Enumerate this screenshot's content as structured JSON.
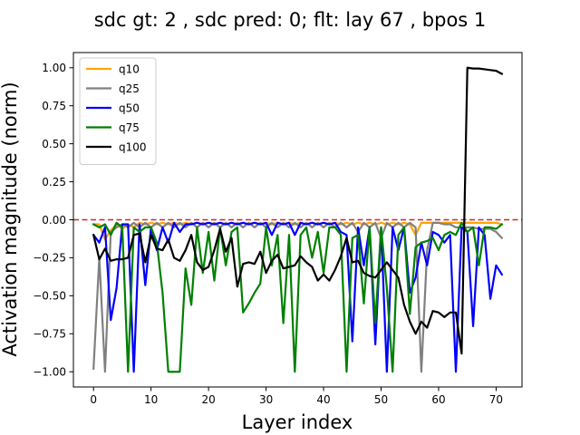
{
  "chart_data": {
    "type": "line",
    "title": "sdc gt: 2 , sdc pred: 0; flt: lay 67 , bpos 1",
    "xlabel": "Layer index",
    "ylabel": "Activation magnitude (norm)",
    "xlim": [
      -3.5,
      74.5
    ],
    "ylim": [
      -1.1,
      1.1
    ],
    "xticks": [
      0,
      10,
      20,
      30,
      40,
      50,
      60,
      70
    ],
    "yticks": [
      -1.0,
      -0.75,
      -0.5,
      -0.25,
      0.0,
      0.25,
      0.5,
      0.75,
      1.0
    ],
    "ytick_labels": [
      "−1.00",
      "−0.75",
      "−0.50",
      "−0.25",
      "0.00",
      "0.25",
      "0.50",
      "0.75",
      "1.00"
    ],
    "grid": false,
    "legend_position": "top-left",
    "reference_line": {
      "y": 0.0,
      "style": "dashed",
      "color": "#d62728"
    },
    "series": [
      {
        "name": "q10",
        "color": "#ffa500",
        "values": [
          -0.03,
          -0.03,
          -0.13,
          -0.07,
          -0.03,
          -0.06,
          -0.03,
          -0.05,
          -0.02,
          -0.03,
          -0.02,
          -0.03,
          -0.02,
          -0.03,
          -0.02,
          -0.03,
          -0.02,
          -0.03,
          -0.02,
          -0.03,
          -0.02,
          -0.03,
          -0.02,
          -0.03,
          -0.02,
          -0.03,
          -0.02,
          -0.03,
          -0.02,
          -0.03,
          -0.02,
          -0.03,
          -0.02,
          -0.03,
          -0.02,
          -0.03,
          -0.02,
          -0.03,
          -0.02,
          -0.03,
          -0.02,
          -0.03,
          -0.02,
          -0.03,
          -0.02,
          -0.03,
          -0.02,
          -0.03,
          -0.02,
          -0.03,
          -0.02,
          -0.03,
          -0.02,
          -0.03,
          -0.02,
          -0.03,
          -0.1,
          -0.02,
          -0.02,
          -0.02,
          -0.02,
          -0.02,
          -0.02,
          -0.02,
          -0.02,
          -0.02,
          -0.02,
          -0.02,
          -0.02,
          -0.02,
          -0.02,
          -0.03
        ]
      },
      {
        "name": "q25",
        "color": "#808080",
        "values": [
          -0.98,
          -0.25,
          -1.0,
          -0.08,
          -0.05,
          -0.03,
          -0.05,
          -0.02,
          -0.05,
          -0.02,
          -0.05,
          -0.02,
          -0.05,
          -0.02,
          -0.05,
          -0.02,
          -0.05,
          -0.02,
          -0.05,
          -0.02,
          -0.05,
          -0.02,
          -0.05,
          -0.02,
          -0.05,
          -0.02,
          -0.05,
          -0.02,
          -0.05,
          -0.02,
          -0.05,
          -0.02,
          -0.05,
          -0.02,
          -0.05,
          -0.02,
          -0.05,
          -0.02,
          -0.05,
          -0.02,
          -0.05,
          -0.02,
          -0.05,
          -0.02,
          -0.05,
          -0.02,
          -0.08,
          -0.02,
          -0.05,
          -0.02,
          -0.12,
          -0.02,
          -0.05,
          -0.02,
          -0.05,
          -0.02,
          -0.05,
          -1.0,
          -0.2,
          -0.02,
          -0.02,
          -0.03,
          -0.03,
          -0.05,
          -0.05,
          -0.05,
          -0.05,
          -0.06,
          -0.06,
          -0.06,
          -0.08,
          -0.12
        ]
      },
      {
        "name": "q50",
        "color": "#0000ff",
        "values": [
          -0.1,
          -0.15,
          -0.05,
          -0.66,
          -0.45,
          -0.03,
          -0.03,
          -1.0,
          -0.03,
          -0.43,
          -0.05,
          -0.2,
          -0.05,
          -0.15,
          -0.02,
          -0.08,
          -0.03,
          -0.03,
          -0.02,
          -0.03,
          -0.02,
          -0.03,
          -0.02,
          -0.03,
          -0.02,
          -0.03,
          -0.02,
          -0.03,
          -0.02,
          -0.03,
          -0.02,
          -0.1,
          -0.02,
          -0.03,
          -0.02,
          -0.1,
          -0.02,
          -0.03,
          -0.02,
          -0.03,
          -0.02,
          -0.03,
          -0.02,
          -0.08,
          -0.1,
          -0.8,
          -0.05,
          -0.3,
          -0.05,
          -0.82,
          -0.05,
          -1.0,
          -0.05,
          -0.2,
          -0.05,
          -0.48,
          -0.38,
          -0.15,
          -0.3,
          -0.08,
          -0.1,
          -0.15,
          -0.1,
          -1.0,
          -0.05,
          -0.08,
          -0.7,
          -0.05,
          -0.1,
          -0.52,
          -0.3,
          -0.36
        ]
      },
      {
        "name": "q75",
        "color": "#008000",
        "values": [
          -0.03,
          -0.05,
          -0.03,
          -0.1,
          -0.02,
          -0.05,
          -1.0,
          -0.05,
          -0.08,
          -0.05,
          -0.05,
          -0.15,
          -0.48,
          -1.0,
          -1.0,
          -1.0,
          -0.32,
          -0.56,
          -0.05,
          -0.35,
          -0.08,
          -0.4,
          -0.05,
          -0.3,
          -0.08,
          -0.05,
          -0.61,
          -0.55,
          -0.48,
          -0.42,
          -0.05,
          -0.3,
          -0.1,
          -0.68,
          -0.1,
          -1.0,
          -0.1,
          -0.05,
          -0.25,
          -0.08,
          -0.35,
          -0.05,
          -0.05,
          -0.1,
          -1.0,
          -0.12,
          -0.1,
          -0.55,
          -0.05,
          -0.68,
          -0.05,
          -0.45,
          -1.0,
          -0.1,
          -0.05,
          -0.62,
          -0.18,
          -0.15,
          -0.14,
          -0.12,
          -0.2,
          -0.1,
          -0.08,
          -0.1,
          -0.02,
          -0.08,
          -0.05,
          -0.3,
          -0.05,
          -0.05,
          -0.06,
          -0.03
        ]
      },
      {
        "name": "q100",
        "color": "#000000",
        "values": [
          -0.1,
          -0.26,
          -0.19,
          -0.27,
          -0.26,
          -0.26,
          -0.25,
          -0.1,
          -0.09,
          -0.28,
          -0.1,
          -0.19,
          -0.2,
          -0.13,
          -0.25,
          -0.27,
          -0.2,
          -0.1,
          -0.28,
          -0.33,
          -0.31,
          -0.2,
          -0.06,
          -0.21,
          -0.12,
          -0.44,
          -0.29,
          -0.28,
          -0.29,
          -0.21,
          -0.35,
          -0.27,
          -0.23,
          -0.32,
          -0.31,
          -0.3,
          -0.24,
          -0.28,
          -0.31,
          -0.4,
          -0.36,
          -0.4,
          -0.33,
          -0.24,
          -0.12,
          -0.28,
          -0.27,
          -0.35,
          -0.37,
          -0.38,
          -0.33,
          -0.28,
          -0.33,
          -0.38,
          -0.56,
          -0.67,
          -0.75,
          -0.67,
          -0.71,
          -0.6,
          -0.61,
          -0.64,
          -0.61,
          -0.61,
          -0.88,
          1.0,
          0.995,
          0.995,
          0.99,
          0.985,
          0.98,
          0.96
        ]
      }
    ]
  }
}
